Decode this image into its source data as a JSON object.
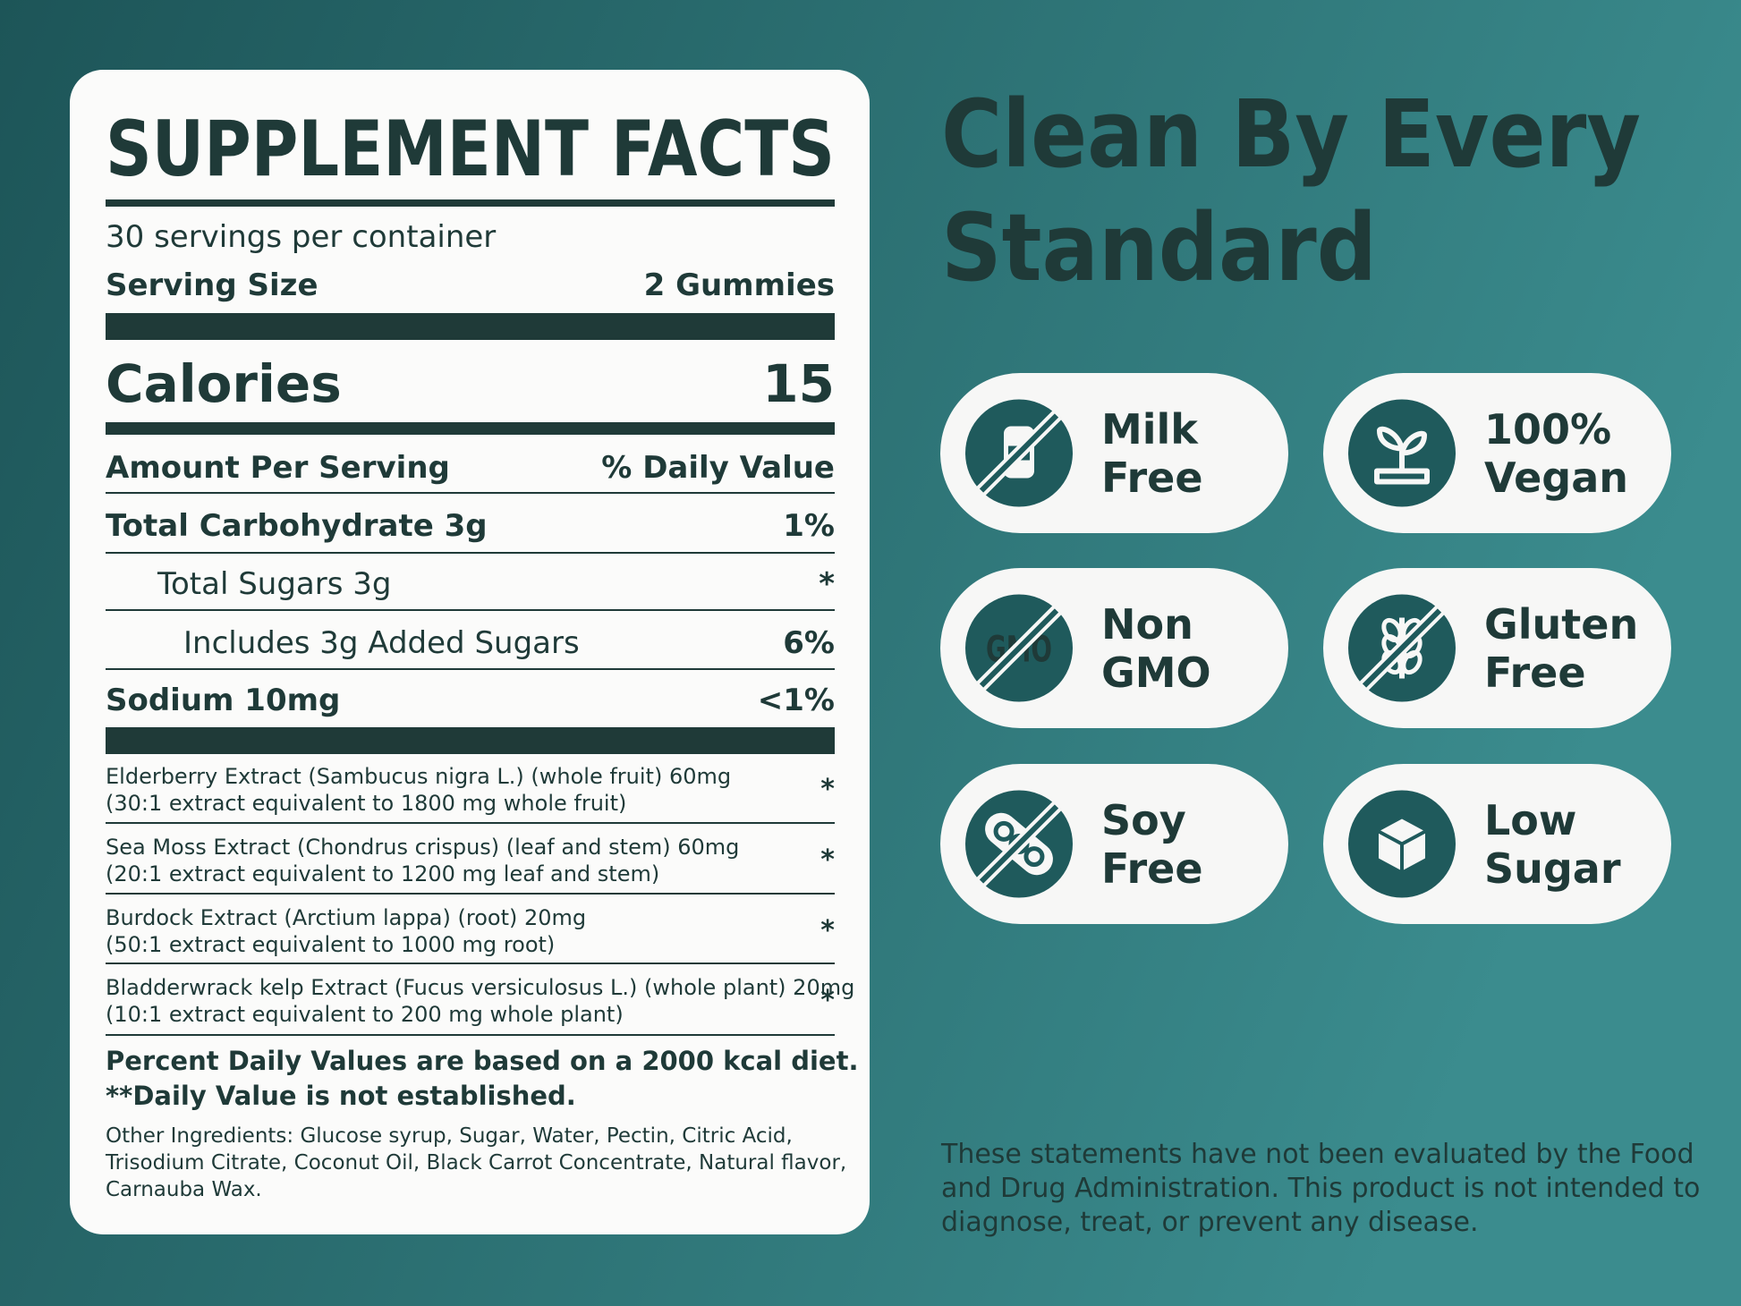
{
  "facts": {
    "title": "SUPPLEMENT FACTS",
    "servings_per_container": "30 servings per container",
    "serving_size": {
      "label": "Serving Size",
      "value": "2 Gummies"
    },
    "calories": {
      "label": "Calories",
      "value": 15
    },
    "amount_header": {
      "label": "Amount Per Serving",
      "value": "% Daily Value"
    },
    "nutrients": [
      {
        "name": "Total Carbohydrate 3g",
        "dv": "1%"
      },
      {
        "name": "Total Sugars 3g",
        "dv": "*"
      },
      {
        "name": "Includes 3g Added Sugars",
        "dv": "6%"
      },
      {
        "name": "Sodium 10mg",
        "dv": "<1%"
      }
    ],
    "extracts": [
      {
        "lines": [
          "Elderberry Extract (Sambucus nigra L.) (whole fruit) 60mg",
          "(30:1 extract equivalent to 1800 mg whole fruit)"
        ],
        "dv": "*"
      },
      {
        "lines": [
          "Sea Moss Extract (Chondrus crispus) (leaf and stem) 60mg",
          "(20:1 extract equivalent to 1200 mg leaf and stem)"
        ],
        "dv": "*"
      },
      {
        "lines": [
          "Burdock Extract (Arctium lappa) (root) 20mg",
          "(50:1 extract equivalent to 1000 mg root)"
        ],
        "dv": "*"
      },
      {
        "lines": [
          "Bladderwrack kelp Extract (Fucus versiculosus L.) (whole plant) 20mg",
          "(10:1 extract equivalent to 200 mg whole plant)"
        ],
        "dv": "*"
      }
    ],
    "footnotes": [
      "Percent Daily Values are based on a 2000 kcal diet.",
      "**Daily Value is not established."
    ],
    "other_ingredients": [
      "Other Ingredients: Glucose syrup, Sugar, Water, Pectin, Citric Acid,",
      "Trisodium Citrate, Coconut Oil, Black Carrot Concentrate, Natural flavor,",
      "Carnauba Wax."
    ]
  },
  "headline": [
    "Clean By Every",
    "Standard"
  ],
  "badges": [
    {
      "lines": [
        "Milk",
        "Free"
      ]
    },
    {
      "lines": [
        "100%",
        "Vegan"
      ]
    },
    {
      "lines": [
        "Non",
        "GMO"
      ],
      "icon_text": "GMO"
    },
    {
      "lines": [
        "Gluten",
        "Free"
      ]
    },
    {
      "lines": [
        "Soy",
        "Free"
      ]
    },
    {
      "lines": [
        "Low",
        "Sugar"
      ]
    }
  ],
  "disclaimer": [
    "These statements have not been evaluated by the Food",
    "and Drug Administration. This product is not intended to",
    "diagnose, treat, or prevent any disease."
  ]
}
